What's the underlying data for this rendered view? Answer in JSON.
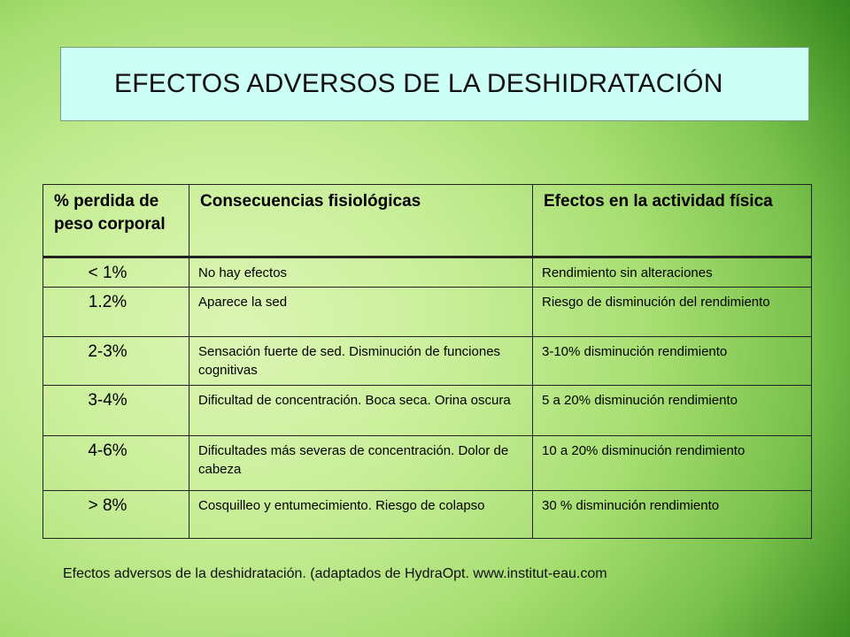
{
  "title": "EFECTOS ADVERSOS DE LA DESHIDRATACIÓN",
  "table": {
    "headers": [
      "% perdida de peso corporal",
      "Consecuencias fisiológicas",
      "Efectos en la actividad física"
    ],
    "rows": [
      {
        "pct": "< 1%",
        "consequence": "No hay efectos",
        "effect": "Rendimiento sin alteraciones"
      },
      {
        "pct": "1.2%",
        "consequence": "Aparece la sed",
        "effect": "Riesgo de disminución del rendimiento"
      },
      {
        "pct": "2-3%",
        "consequence": "Sensación fuerte de sed. Disminución de funciones cognitivas",
        "effect": "3-10% disminución rendimiento"
      },
      {
        "pct": "3-4%",
        "consequence": "Dificultad de concentración. Boca seca. Orina oscura",
        "effect": "5 a 20% disminución rendimiento"
      },
      {
        "pct": "4-6%",
        "consequence": "Dificultades más severas de concentración. Dolor de cabeza",
        "effect": "10 a 20% disminución rendimiento"
      },
      {
        "pct": "> 8%",
        "consequence": "Cosquilleo y entumecimiento. Riesgo de colapso",
        "effect": "30 % disminución rendimiento"
      }
    ]
  },
  "caption": "Efectos adversos de la deshidratación. (adaptados de HydraOpt. www.institut-eau.com"
}
